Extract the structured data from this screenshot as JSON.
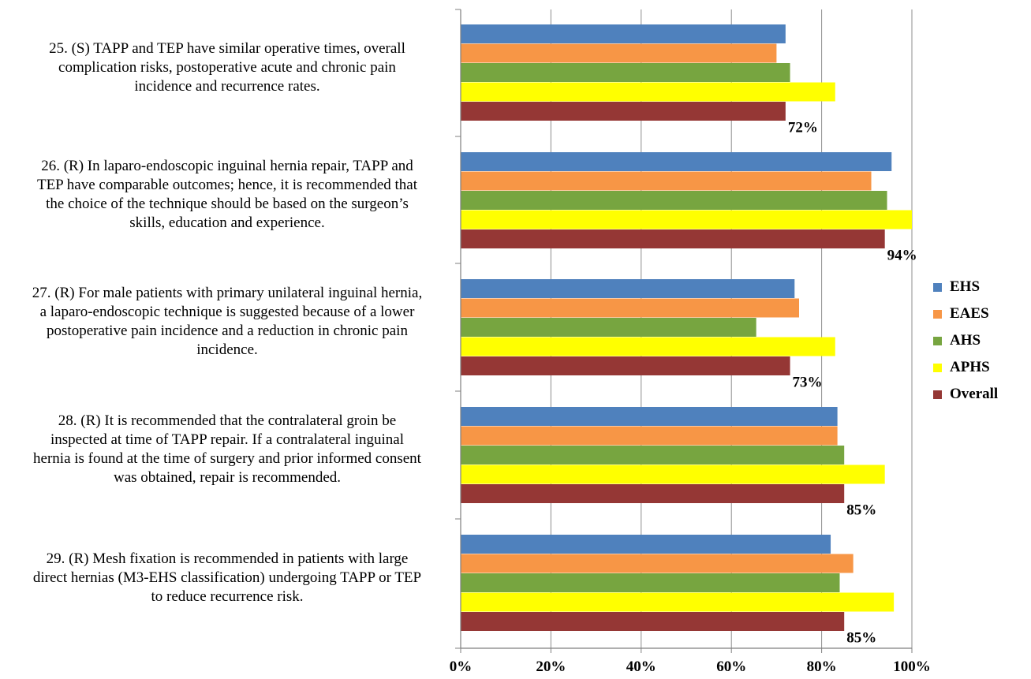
{
  "chart_data": {
    "type": "bar",
    "orientation": "horizontal",
    "categories": [
      "25. (S) TAPP and TEP have similar operative times, overall complication risks, postoperative acute and chronic pain incidence and recurrence rates.",
      "26. (R) In laparo-endoscopic inguinal hernia repair, TAPP and TEP have comparable outcomes; hence, it is recommended that the choice of the technique should be based on the surgeon’s skills, education and experience.",
      "27. (R) For male patients with primary unilateral inguinal hernia, a laparo-endoscopic technique is suggested because of a lower postoperative pain incidence and a reduction in chronic pain incidence.",
      "28. (R) It is recommended that the contralateral groin be inspected at time of TAPP repair. If a contralateral inguinal hernia is found at the time of surgery and prior informed consent was obtained, repair is recommended.",
      "29. (R) Mesh fixation is recommended in patients with large direct hernias (M3-EHS classification) undergoing TAPP or TEP to reduce recurrence risk."
    ],
    "category_lines": [
      [
        "25. (S) TAPP and TEP have similar operative times, overall",
        "complication risks, postoperative acute and chronic pain",
        "incidence and recurrence rates."
      ],
      [
        "26. (R) In laparo-endoscopic inguinal hernia repair, TAPP and",
        "TEP have comparable outcomes; hence, it is recommended that",
        "the choice of the technique should be based on the surgeon’s",
        "skills, education and experience."
      ],
      [
        "27. (R) For male patients with primary unilateral inguinal hernia,",
        "a laparo-endoscopic technique is suggested because of a lower",
        "postoperative pain incidence and a reduction in chronic pain",
        "incidence."
      ],
      [
        "28. (R) It is recommended that the contralateral groin be",
        "inspected at time of TAPP repair. If a contralateral inguinal",
        "hernia is found at the time of surgery and prior informed consent",
        "was obtained, repair is recommended."
      ],
      [
        "29. (R) Mesh fixation is recommended in patients with large",
        "direct hernias (M3-EHS classification) undergoing TAPP or TEP",
        "to reduce recurrence risk."
      ]
    ],
    "series": [
      {
        "name": "EHS",
        "color": "#4f81bd",
        "values": [
          72,
          95.5,
          74,
          83.5,
          82
        ]
      },
      {
        "name": "EAES",
        "color": "#f79646",
        "values": [
          70,
          91,
          75,
          83.5,
          87
        ]
      },
      {
        "name": "AHS",
        "color": "#77a540",
        "values": [
          73,
          94.5,
          65.5,
          85,
          84
        ]
      },
      {
        "name": "APHS",
        "color": "#ffff00",
        "values": [
          83,
          100,
          83,
          94,
          96
        ]
      },
      {
        "name": "Overall",
        "color": "#953735",
        "values": [
          72,
          94,
          73,
          85,
          85
        ]
      }
    ],
    "data_labels": [
      "72%",
      "94%",
      "73%",
      "85%",
      "85%"
    ],
    "xlim": [
      0,
      100
    ],
    "xticks": [
      "0%",
      "20%",
      "40%",
      "60%",
      "80%",
      "100%"
    ],
    "grid": true,
    "legend": "right",
    "title": "",
    "xlabel": "",
    "ylabel": ""
  }
}
